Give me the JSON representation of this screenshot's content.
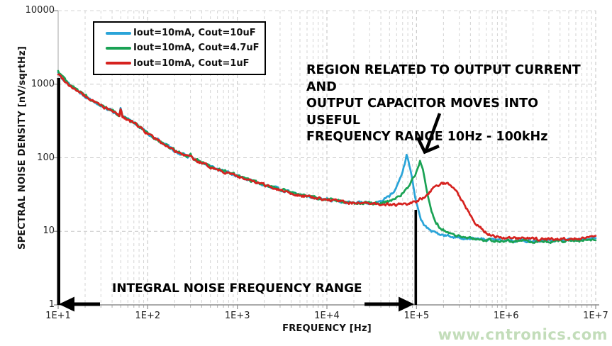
{
  "watermark": {
    "text": "www.cntronics.com",
    "color": "#c3ddba"
  },
  "chart_data": {
    "type": "line",
    "title": "",
    "xlabel": "FREQUENCY [Hz]",
    "ylabel": "SPECTRAL NOISE DENSITY [nV/sqrtHz]",
    "x_scale": "log",
    "y_scale": "log",
    "xlim": [
      10,
      10000000
    ],
    "ylim": [
      1,
      10000
    ],
    "x_tick_labels": [
      "1E+1",
      "1E+2",
      "1E+3",
      "1E+4",
      "1E+5",
      "1E+6",
      "1E+7"
    ],
    "x_tick_values": [
      10,
      100,
      1000,
      10000,
      100000,
      1000000,
      10000000
    ],
    "y_tick_labels": [
      "10000",
      "1000",
      "100",
      "10",
      "1"
    ],
    "y_tick_values": [
      10000,
      1000,
      100,
      10,
      1
    ],
    "grid": {
      "vertical_minor": true,
      "horizontal_major": true,
      "style": "dashed",
      "color": "#c9c9c9"
    },
    "legend": {
      "position": "top-left",
      "border_color": "#000000",
      "background": "#ffffff"
    },
    "series": [
      {
        "name": "Iout=10mA, Cout=10uF",
        "color": "#2aa4d8",
        "points": [
          [
            10,
            1430
          ],
          [
            13,
            1020
          ],
          [
            17,
            790
          ],
          [
            22,
            640
          ],
          [
            28,
            545
          ],
          [
            35,
            470
          ],
          [
            45,
            400
          ],
          [
            49,
            378
          ],
          [
            50,
            490
          ],
          [
            52,
            365
          ],
          [
            60,
            330
          ],
          [
            70,
            300
          ],
          [
            85,
            255
          ],
          [
            100,
            212
          ],
          [
            130,
            174
          ],
          [
            170,
            142
          ],
          [
            220,
            117
          ],
          [
            280,
            103
          ],
          [
            300,
            110
          ],
          [
            320,
            97
          ],
          [
            400,
            85
          ],
          [
            500,
            76
          ],
          [
            650,
            68
          ],
          [
            800,
            62
          ],
          [
            1000,
            57
          ],
          [
            1400,
            49
          ],
          [
            2000,
            43
          ],
          [
            3000,
            37
          ],
          [
            4500,
            32
          ],
          [
            7000,
            29
          ],
          [
            10000,
            27
          ],
          [
            15000,
            25.5
          ],
          [
            20000,
            24.5
          ],
          [
            30000,
            24
          ],
          [
            40000,
            26
          ],
          [
            50000,
            30
          ],
          [
            60000,
            40
          ],
          [
            70000,
            64
          ],
          [
            78000,
            110
          ],
          [
            86000,
            70
          ],
          [
            96000,
            30
          ],
          [
            110000,
            15
          ],
          [
            130000,
            11
          ],
          [
            160000,
            9.5
          ],
          [
            200000,
            8.8
          ],
          [
            300000,
            8.2
          ],
          [
            500000,
            7.8
          ],
          [
            1000000,
            7.6
          ],
          [
            2000000,
            7.4
          ],
          [
            5000000,
            7.6
          ],
          [
            10000000,
            8.0
          ]
        ]
      },
      {
        "name": "Iout=10mA, Cout=4.7uF",
        "color": "#1aa254",
        "points": [
          [
            10,
            1500
          ],
          [
            13,
            1050
          ],
          [
            17,
            800
          ],
          [
            22,
            650
          ],
          [
            28,
            550
          ],
          [
            35,
            475
          ],
          [
            45,
            402
          ],
          [
            49,
            380
          ],
          [
            50,
            495
          ],
          [
            52,
            368
          ],
          [
            60,
            332
          ],
          [
            70,
            302
          ],
          [
            85,
            257
          ],
          [
            100,
            214
          ],
          [
            130,
            175
          ],
          [
            170,
            143
          ],
          [
            220,
            118
          ],
          [
            280,
            104
          ],
          [
            300,
            111
          ],
          [
            320,
            98
          ],
          [
            400,
            86
          ],
          [
            500,
            77
          ],
          [
            650,
            68.5
          ],
          [
            800,
            62.5
          ],
          [
            1000,
            57.5
          ],
          [
            1400,
            49.5
          ],
          [
            2000,
            43.3
          ],
          [
            3000,
            37.3
          ],
          [
            4500,
            32.3
          ],
          [
            7000,
            29.2
          ],
          [
            10000,
            27.2
          ],
          [
            15000,
            25.6
          ],
          [
            20000,
            24.6
          ],
          [
            30000,
            24
          ],
          [
            40000,
            24.5
          ],
          [
            50000,
            26
          ],
          [
            65000,
            30
          ],
          [
            80000,
            40
          ],
          [
            95000,
            55
          ],
          [
            110000,
            90
          ],
          [
            120000,
            62
          ],
          [
            135000,
            30
          ],
          [
            155000,
            15
          ],
          [
            185000,
            11
          ],
          [
            250000,
            9
          ],
          [
            350000,
            8.2
          ],
          [
            500000,
            7.7
          ],
          [
            1000000,
            7.4
          ],
          [
            3000000,
            7.3
          ],
          [
            6000000,
            7.5
          ],
          [
            10000000,
            7.8
          ]
        ]
      },
      {
        "name": "Iout=10mA, Cout=1uF",
        "color": "#d6221f",
        "points": [
          [
            10,
            1380
          ],
          [
            13,
            1000
          ],
          [
            17,
            780
          ],
          [
            22,
            635
          ],
          [
            28,
            540
          ],
          [
            35,
            465
          ],
          [
            45,
            398
          ],
          [
            49,
            376
          ],
          [
            50,
            500
          ],
          [
            52,
            362
          ],
          [
            60,
            328
          ],
          [
            70,
            298
          ],
          [
            85,
            253
          ],
          [
            100,
            210
          ],
          [
            130,
            173
          ],
          [
            170,
            141
          ],
          [
            220,
            116
          ],
          [
            280,
            102
          ],
          [
            300,
            109
          ],
          [
            320,
            96
          ],
          [
            400,
            84
          ],
          [
            500,
            75
          ],
          [
            650,
            67.5
          ],
          [
            800,
            61.5
          ],
          [
            1000,
            56.5
          ],
          [
            1400,
            48.5
          ],
          [
            2000,
            42.7
          ],
          [
            3000,
            36.7
          ],
          [
            4500,
            31.7
          ],
          [
            7000,
            28.8
          ],
          [
            10000,
            26.8
          ],
          [
            15000,
            25.3
          ],
          [
            20000,
            24.3
          ],
          [
            30000,
            23.5
          ],
          [
            40000,
            23.5
          ],
          [
            60000,
            23
          ],
          [
            80000,
            23.5
          ],
          [
            100000,
            25
          ],
          [
            120000,
            29
          ],
          [
            150000,
            37
          ],
          [
            180000,
            43
          ],
          [
            210000,
            45
          ],
          [
            240000,
            44
          ],
          [
            280000,
            36
          ],
          [
            350000,
            22
          ],
          [
            450000,
            13
          ],
          [
            600000,
            9.5
          ],
          [
            800000,
            8.4
          ],
          [
            1200000,
            8.0
          ],
          [
            3000000,
            7.8
          ],
          [
            6000000,
            8.0
          ],
          [
            10000000,
            8.4
          ]
        ]
      }
    ],
    "annotations": {
      "region_note": {
        "text": "REGION RELATED TO OUTPUT CURRENT AND\nOUTPUT CAPACITOR MOVES INTO USEFUL\nFREQUENCY RANGE 10Hz - 100kHz",
        "arrow_points_to": "resonance peaks near 100kHz"
      },
      "integral_note": {
        "text": "INTEGRAL NOISE FREQUENCY RANGE",
        "range_hz": [
          10,
          100000
        ]
      }
    }
  }
}
